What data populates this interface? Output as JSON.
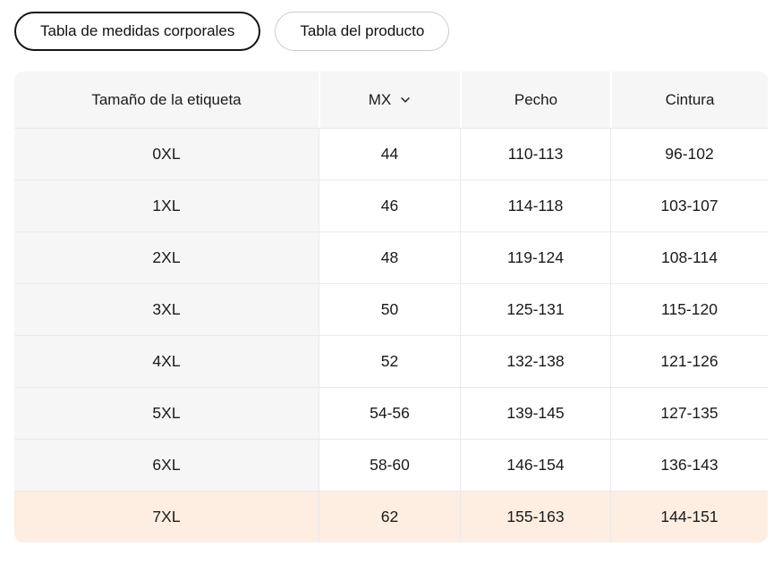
{
  "tabs": [
    {
      "label": "Tabla de medidas corporales",
      "active": true
    },
    {
      "label": "Tabla del producto",
      "active": false
    }
  ],
  "table": {
    "columns": [
      "Tamaño de la etiqueta",
      "MX",
      "Pecho",
      "Cintura"
    ],
    "size_system": {
      "selected": "MX",
      "icon": "chevron-down"
    },
    "rows": [
      {
        "label": "0XL",
        "values": [
          "44",
          "110-113",
          "96-102"
        ],
        "highlighted": false
      },
      {
        "label": "1XL",
        "values": [
          "46",
          "114-118",
          "103-107"
        ],
        "highlighted": false
      },
      {
        "label": "2XL",
        "values": [
          "48",
          "119-124",
          "108-114"
        ],
        "highlighted": false
      },
      {
        "label": "3XL",
        "values": [
          "50",
          "125-131",
          "115-120"
        ],
        "highlighted": false
      },
      {
        "label": "4XL",
        "values": [
          "52",
          "132-138",
          "121-126"
        ],
        "highlighted": false
      },
      {
        "label": "5XL",
        "values": [
          "54-56",
          "139-145",
          "127-135"
        ],
        "highlighted": false
      },
      {
        "label": "6XL",
        "values": [
          "58-60",
          "146-154",
          "136-143"
        ],
        "highlighted": false
      },
      {
        "label": "7XL",
        "values": [
          "62",
          "155-163",
          "144-151"
        ],
        "highlighted": true
      }
    ]
  },
  "colors": {
    "highlight_row": "#fdeee1",
    "header_bg": "#f6f6f7",
    "divider": "#eaeaea",
    "active_tab_border": "#141414",
    "inactive_tab_border": "#cccccc",
    "text": "#1a1a1a"
  }
}
